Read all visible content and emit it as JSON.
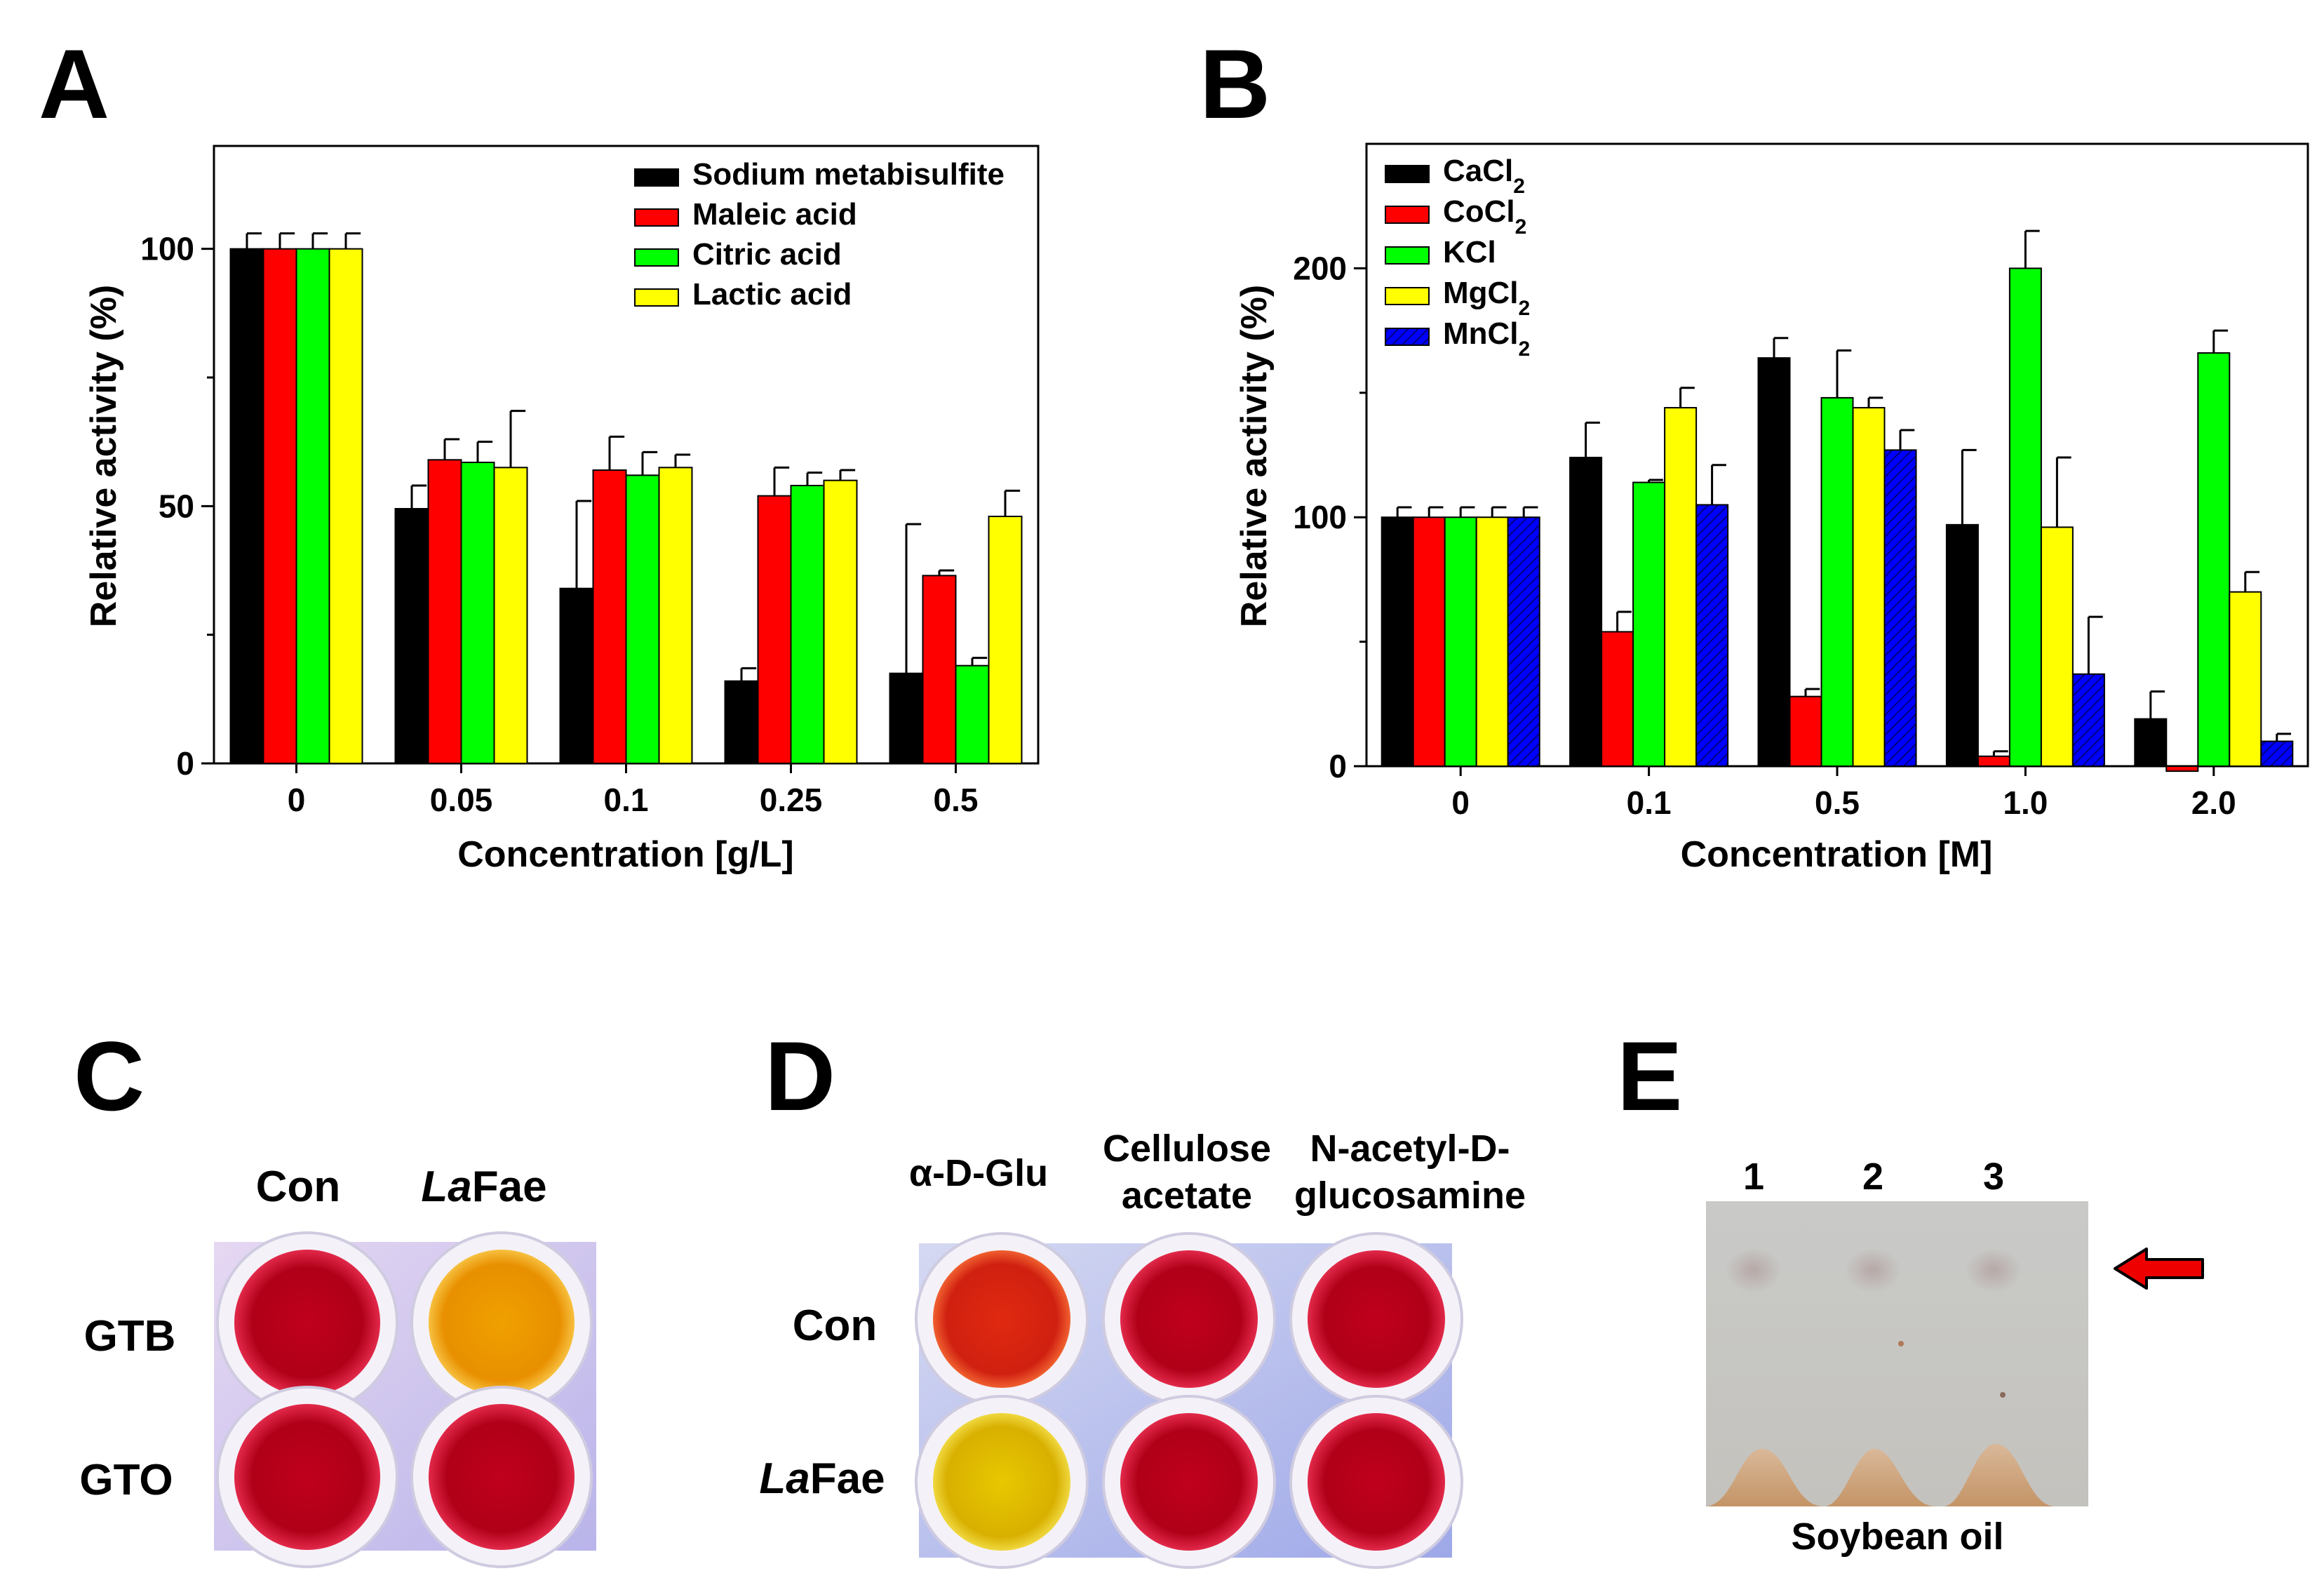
{
  "panels": {
    "A": "A",
    "B": "B",
    "C": "C",
    "D": "D",
    "E": "E"
  },
  "colors": {
    "black": "#000000",
    "red": "#ff0000",
    "green": "#00ff00",
    "yellow": "#ffff00",
    "blue": "#0000ff"
  },
  "chart_data": [
    {
      "id": "A",
      "type": "bar",
      "title": "",
      "xlabel": "Concentration [g/L]",
      "ylabel": "Relative activity (%)",
      "ylim": [
        0,
        120
      ],
      "yticks": [
        "0",
        "50",
        "100"
      ],
      "yticks_values": [
        0,
        50,
        100
      ],
      "categories": [
        "0",
        "0.05",
        "0.1",
        "0.25",
        "0.5"
      ],
      "legend_position": "top-right",
      "series": [
        {
          "name": "Sodium metabisulfite",
          "color": "#000000",
          "values": [
            100,
            49.5,
            34,
            16,
            17.5
          ],
          "errors": [
            3,
            4.5,
            17,
            2.5,
            29
          ]
        },
        {
          "name": "Maleic acid",
          "color": "#ff0000",
          "values": [
            100,
            59,
            57,
            52,
            36.5
          ],
          "errors": [
            3,
            4,
            6.5,
            5.5,
            1
          ]
        },
        {
          "name": "Citric acid",
          "color": "#00ff00",
          "values": [
            100,
            58.5,
            56,
            54,
            19
          ],
          "errors": [
            3,
            4,
            4.5,
            2.5,
            1.5
          ]
        },
        {
          "name": "Lactic acid",
          "color": "#ffff00",
          "values": [
            100,
            57.5,
            57.5,
            55,
            48
          ],
          "errors": [
            3,
            11,
            2.5,
            2,
            5
          ]
        }
      ]
    },
    {
      "id": "B",
      "type": "bar",
      "title": "",
      "xlabel": "Concentration [M]",
      "ylabel": "Relative activity (%)",
      "ylim": [
        0,
        250
      ],
      "yticks": [
        "0",
        "100",
        "200"
      ],
      "yticks_values": [
        0,
        100,
        200
      ],
      "categories": [
        "0",
        "0.1",
        "0.5",
        "1.0",
        "2.0"
      ],
      "legend_position": "top-left",
      "series": [
        {
          "name": "CaCl",
          "sub": "2",
          "color": "#000000",
          "values": [
            100,
            124,
            164,
            97,
            19
          ],
          "errors": [
            4,
            14,
            8,
            30,
            11
          ]
        },
        {
          "name": "CoCl",
          "sub": "2",
          "color": "#ff0000",
          "values": [
            100,
            54,
            28,
            4,
            -2
          ],
          "errors": [
            4,
            8,
            3,
            2,
            0
          ]
        },
        {
          "name": "KCl",
          "sub": "",
          "color": "#00ff00",
          "values": [
            100,
            114,
            148,
            200,
            166
          ],
          "errors": [
            4,
            1,
            19,
            15,
            9
          ]
        },
        {
          "name": "MgCl",
          "sub": "2",
          "color": "#ffff00",
          "values": [
            100,
            144,
            144,
            96,
            70
          ],
          "errors": [
            4,
            8,
            4,
            28,
            8
          ]
        },
        {
          "name": "MnCl",
          "sub": "2",
          "color": "#0000ff",
          "hatched": true,
          "values": [
            100,
            105,
            127,
            37,
            10
          ],
          "errors": [
            4,
            16,
            8,
            23,
            3
          ]
        }
      ]
    }
  ],
  "panelC": {
    "col_labels": [
      "Con",
      "La",
      "Fae"
    ],
    "row_labels": [
      "GTB",
      "GTO"
    ]
  },
  "panelD": {
    "col1": "α-D-Glu",
    "col2_l1": "Cellulose",
    "col2_l2": "acetate",
    "col3_l1": "N-acetyl-D-",
    "col3_l2": "glucosamine",
    "row1": "Con",
    "row2_italic": "La",
    "row2_rest": "Fae"
  },
  "panelE": {
    "lanes": [
      "1",
      "2",
      "3"
    ],
    "caption": "Soybean oil"
  }
}
